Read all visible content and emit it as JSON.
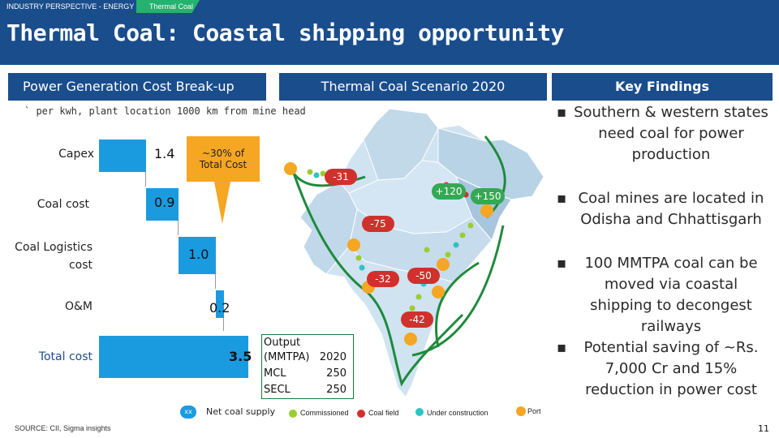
{
  "header": {
    "crumb_primary": "INDUSTRY PERSPECTIVE - ENERGY",
    "crumb_secondary": "Thermal Coal",
    "title": "Thermal Coal: Coastal shipping opportunity"
  },
  "sections": {
    "left": "Power Generation Cost Break-up",
    "middle": "Thermal Coal Scenario 2020",
    "right": "Key Findings"
  },
  "waterfall": {
    "note": "` per kwh, plant location 1000 km from mine head",
    "rows": [
      {
        "label": "Capex",
        "value": "1.4"
      },
      {
        "label": "Coal cost",
        "value": "0.9"
      },
      {
        "label": "Coal Logistics cost",
        "value": "1.0"
      },
      {
        "label": "O&M",
        "value": "0.2"
      },
      {
        "label": "Total cost",
        "value": "3.5"
      }
    ],
    "callout": "~30% of Total Cost"
  },
  "map_badges": [
    "-31",
    "+120",
    "+150",
    "-75",
    "-32",
    "-50",
    "-42"
  ],
  "output_table": {
    "header_line1": "Output",
    "header_line2": "(MMTPA)",
    "year": "2020",
    "rows": [
      {
        "name": "MCL",
        "value": "250"
      },
      {
        "name": "SECL",
        "value": "250"
      }
    ]
  },
  "legend": {
    "xx_label": "xx",
    "net": "Net coal supply",
    "commissioned": "Commissioned",
    "coal_field": "Coal field",
    "under_construction": "Under construction",
    "port": "Port"
  },
  "findings": [
    "Southern & western states need coal for power production",
    "Coal mines are located in Odisha and Chhattisgarh",
    "100 MMTPA coal can be moved via coastal shipping to decongest railways",
    "Potential saving of ~Rs. 7,000 Cr and 15% reduction in power cost"
  ],
  "footer": {
    "source": "SOURCE: CII, Sigma insights",
    "page": "11"
  },
  "colors": {
    "brand_blue": "#1a4d8c",
    "accent_green": "#23b26f",
    "bar_blue": "#1a9be0",
    "callout_orange": "#f5a623",
    "route_green": "#1e8a3c",
    "deficit_red": "#d0312d"
  }
}
